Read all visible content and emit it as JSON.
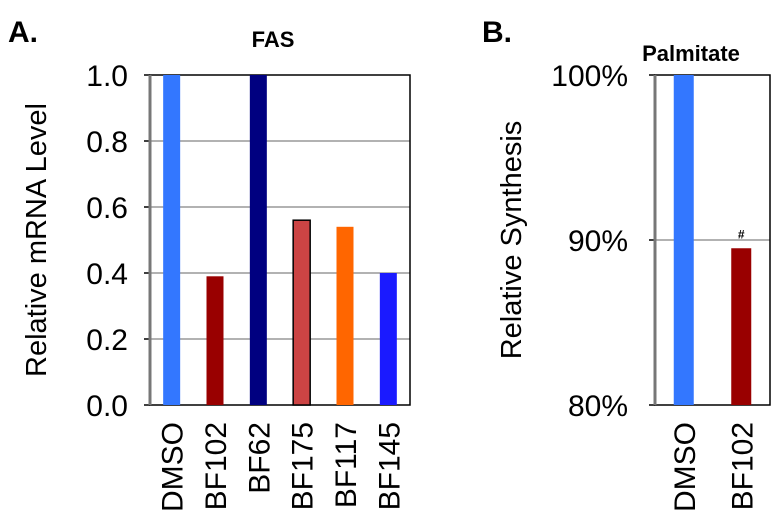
{
  "chart_data": [
    {
      "panel": "A.",
      "type": "bar",
      "title": "FAS",
      "xlabel": "",
      "ylabel": "Relative mRNA Level",
      "ylim": [
        0,
        1.0
      ],
      "yticks": [
        "0.0",
        "0.2",
        "0.4",
        "0.6",
        "0.8",
        "1.0"
      ],
      "grid": true,
      "categories": [
        "DMSO",
        "BF102",
        "BF62",
        "BF175",
        "BF117",
        "BF145"
      ],
      "values": [
        1.0,
        0.39,
        1.0,
        0.56,
        0.54,
        0.4
      ],
      "colors": [
        "#3377ff",
        "#990000",
        "#000080",
        "#cc4444",
        "#ff6600",
        "#1a1aff"
      ],
      "bar_outline": [
        false,
        false,
        false,
        true,
        false,
        false
      ],
      "annotations": []
    },
    {
      "panel": "B.",
      "type": "bar",
      "title": "Palmitate",
      "xlabel": "",
      "ylabel": "Relative Synthesis",
      "ylim": [
        80,
        100
      ],
      "yticks": [
        "80%",
        "90%",
        "100%"
      ],
      "grid": true,
      "categories": [
        "DMSO",
        "BF102"
      ],
      "values": [
        100,
        89.5
      ],
      "colors": [
        "#3377ff",
        "#990000"
      ],
      "bar_outline": [
        false,
        false
      ],
      "annotations": [
        {
          "category": "BF102",
          "text": "#"
        }
      ]
    }
  ]
}
